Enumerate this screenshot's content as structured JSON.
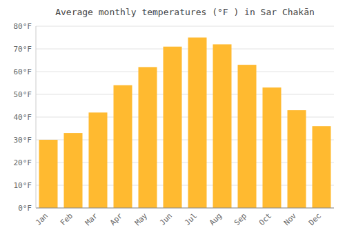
{
  "chart_data": {
    "type": "bar",
    "title": "Average monthly temperatures (°F ) in Sar Chakān",
    "categories": [
      "Jan",
      "Feb",
      "Mar",
      "Apr",
      "May",
      "Jun",
      "Jul",
      "Aug",
      "Sep",
      "Oct",
      "Nov",
      "Dec"
    ],
    "values": [
      30,
      33,
      42,
      54,
      62,
      71,
      75,
      72,
      63,
      53,
      43,
      36
    ],
    "color": "#FFBA30",
    "ylim": [
      0,
      80
    ],
    "yticks": [
      {
        "value": 0,
        "label": "0°F"
      },
      {
        "value": 10,
        "label": "10°F"
      },
      {
        "value": 20,
        "label": "20°F"
      },
      {
        "value": 30,
        "label": "30°F"
      },
      {
        "value": 40,
        "label": "40°F"
      },
      {
        "value": 50,
        "label": "50°F"
      },
      {
        "value": 60,
        "label": "60°F"
      },
      {
        "value": 70,
        "label": "70°F"
      },
      {
        "value": 80,
        "label": "80°F"
      }
    ],
    "grid": true
  }
}
